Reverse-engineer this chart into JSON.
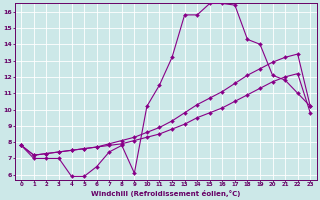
{
  "background_color": "#cce8e8",
  "grid_color": "#aacccc",
  "line_color": "#880088",
  "marker_color": "#880088",
  "xlabel": "Windchill (Refroidissement éolien,°C)",
  "xlabel_color": "#660066",
  "ylabel_color": "#660066",
  "tick_color": "#660066",
  "spine_color": "#660066",
  "xlim": [
    -0.5,
    23.5
  ],
  "ylim": [
    5.7,
    16.5
  ],
  "xticks": [
    0,
    1,
    2,
    3,
    4,
    5,
    6,
    7,
    8,
    9,
    10,
    11,
    12,
    13,
    14,
    15,
    16,
    17,
    18,
    19,
    20,
    21,
    22,
    23
  ],
  "yticks": [
    6,
    7,
    8,
    9,
    10,
    11,
    12,
    13,
    14,
    15,
    16
  ],
  "line1_x": [
    0,
    1,
    2,
    3,
    4,
    5,
    6,
    7,
    8,
    9,
    10,
    11,
    12,
    13,
    14,
    15,
    16,
    17,
    18,
    19,
    20,
    21,
    22,
    23
  ],
  "line1_y": [
    7.8,
    7.0,
    7.0,
    7.0,
    5.9,
    5.9,
    6.5,
    7.4,
    7.8,
    6.1,
    10.2,
    11.5,
    13.2,
    15.8,
    15.8,
    16.5,
    16.5,
    16.4,
    14.3,
    14.0,
    12.1,
    11.8,
    11.0,
    10.2
  ],
  "line2_x": [
    0,
    1,
    2,
    3,
    4,
    5,
    6,
    7,
    8,
    9,
    10,
    11,
    12,
    13,
    14,
    15,
    16,
    17,
    18,
    19,
    20,
    21,
    22,
    23
  ],
  "line2_y": [
    7.8,
    7.2,
    7.3,
    7.4,
    7.5,
    7.6,
    7.7,
    7.8,
    7.9,
    8.1,
    8.3,
    8.5,
    8.8,
    9.1,
    9.5,
    9.8,
    10.1,
    10.5,
    10.9,
    11.3,
    11.7,
    12.0,
    12.2,
    9.8
  ],
  "line3_x": [
    0,
    1,
    2,
    3,
    4,
    5,
    6,
    7,
    8,
    9,
    10,
    11,
    12,
    13,
    14,
    15,
    16,
    17,
    18,
    19,
    20,
    21,
    22,
    23
  ],
  "line3_y": [
    7.8,
    7.2,
    7.3,
    7.4,
    7.5,
    7.6,
    7.7,
    7.9,
    8.1,
    8.3,
    8.6,
    8.9,
    9.3,
    9.8,
    10.3,
    10.7,
    11.1,
    11.6,
    12.1,
    12.5,
    12.9,
    13.2,
    13.4,
    10.2
  ]
}
